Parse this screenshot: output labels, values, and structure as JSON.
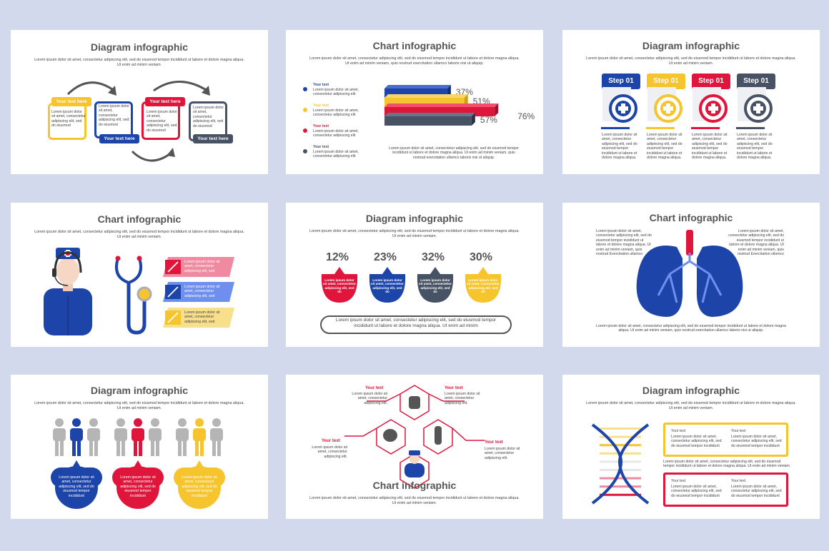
{
  "lorem_sub": "Lorem ipsum dolor sit amet, consectetur adipiscing elit, sed do eiusmod tempor incididunt ut labore et dolore magna aliqua. Ut enim ad minim veniam.",
  "lorem_sub2": "Lorem ipsum dolor sit amet, consectetur adipiscing elit, sed do eiusmod tempor incididunt ut labore et dolore magna aliqua. Ut enim ad minim veniam, quis nostrud exercitation ullamco laboris nisi ut aliquip.",
  "colors": {
    "yellow": "#f6c42d",
    "blue": "#1d44a8",
    "red": "#e0153c",
    "gray": "#475265",
    "pink": "#f08aa0",
    "lightblue": "#6e8ff0",
    "lightyellow": "#f8df8c",
    "bg": "#d3d9ec"
  },
  "s1": {
    "title": "Diagram infographic",
    "tag": "Your text here",
    "body": "Lorem ipsum dolor sit amet, consectetur adipiscing elit, sed do eiusmod"
  },
  "s2": {
    "title": "Chart infographic",
    "legend_label": "Your text",
    "legend_body": "Lorem ipsum dolor sit amet, consectetur adipiscing elit",
    "bottom": "Lorem ipsum dolor sit amet, consectetur adipiscing elit, sed do eiusmod tempor incididunt ut labore et dolore magna aliqua. Ut enim ad minim veniam, quis nostrud exercitation ullamco laboris nisi ut aliquip."
  },
  "s3": {
    "title": "Diagram infographic",
    "step": "Step 01",
    "body": "Lorem ipsum dolor sit amet, consectetur adipiscing elit, sed do eiusmod tempor incididunt ut labore et dolore magna aliqua."
  },
  "s4": {
    "title": "Chart infographic",
    "banner": "Lorem ipsum dolor sit amet, consectetur adipiscing elit, sed"
  },
  "s5": {
    "title": "Diagram infographic",
    "bubble": "Lorem ipsum dolor sit amet, consectetur adipiscing elit, sed do",
    "footer": "Lorem ipsum dolor sit amet, consectetur adipiscing elit, sed do eiusmod tempor incididunt ut labore et dolore magna aliqua. Ut enim ad minim"
  },
  "s6": {
    "title": "Chart infographic",
    "left": "Lorem ipsum dolor sit amet, consectetur adipiscing elit, sed do eiusmod tempor incididunt ut labore et dolore magna aliqua. Ut enim ad minim veniam, quis nostrud Exercitation ullamco",
    "right": "Lorem ipsum dolor sit amet, consectetur adipiscing elit, sed do eiusmod tempor incididunt ut labore et dolore magna aliqua. Ut enim ad minim veniam, quis nostrud Exercitation ullamco",
    "bottom": "Lorem ipsum dolor sit amet, consectetur adipiscing elit, sed do eiusmod tempor incididunt ut labore et dolore magna aliqua. Ut enim ad minim veniam, quis nostrud exercitation ullamco laboris nisi ut aliquip."
  },
  "s7": {
    "title": "Diagram infographic",
    "bubble": "Lorem ipsum dolor sit amet, consectetur adipiscing elit, sed do eiusmod tempor incididunt"
  },
  "s8": {
    "title": "Chart infographic",
    "label": "Your text",
    "body": "Lorem ipsum dolor sit amet, consectetur adipiscing elit."
  },
  "s9": {
    "title": "Diagram infographic",
    "label": "Your text",
    "body": "Lorem ipsum dolor sit amet, consectetur adipiscing elit, sed do eiusmod tempor incididunt"
  },
  "chart_data": {
    "type": "bar",
    "categories": [
      "Your text",
      "Your text",
      "Your text",
      "Your text"
    ],
    "values": [
      37,
      51,
      76,
      57
    ],
    "colors": [
      "#1d44a8",
      "#f6c42d",
      "#e0153c",
      "#475265"
    ]
  },
  "percents": [
    "12%",
    "23%",
    "32%",
    "30%"
  ]
}
